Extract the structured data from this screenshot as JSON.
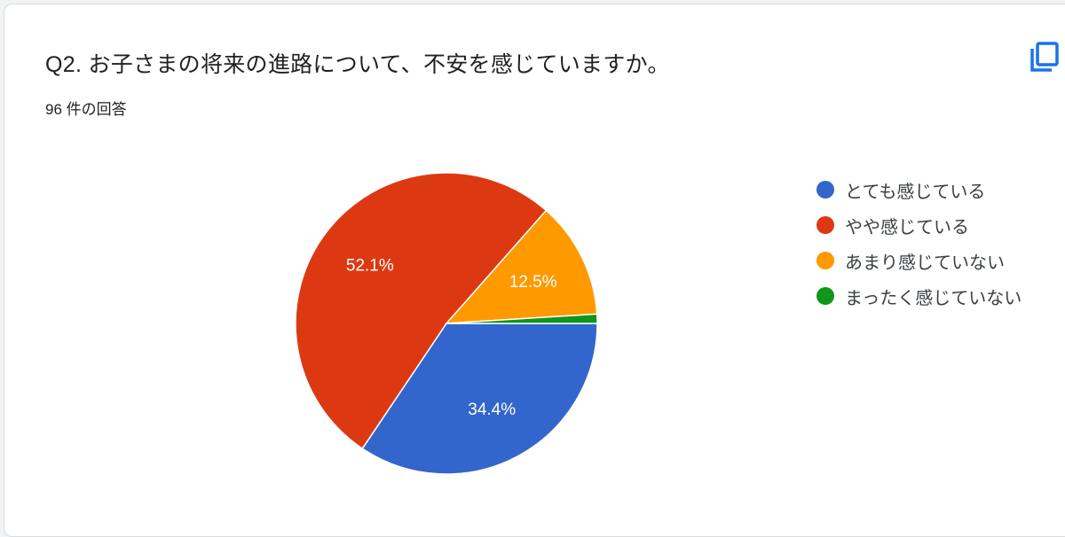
{
  "header": {
    "title": "Q2. お子さまの将来の進路について、不安を感じていますか。",
    "response_count": "96 件の回答",
    "copy_icon": "copy-icon"
  },
  "chart_data": {
    "type": "pie",
    "categories": [
      "とても感じている",
      "やや感じている",
      "あまり感じていない",
      "まったく感じていない"
    ],
    "values": [
      34.4,
      52.1,
      12.5,
      1.0
    ],
    "labels": [
      "34.4%",
      "52.1%",
      "12.5%",
      ""
    ],
    "colors": [
      "#3366cc",
      "#dc3912",
      "#ff9900",
      "#109618"
    ],
    "legend": "right"
  }
}
